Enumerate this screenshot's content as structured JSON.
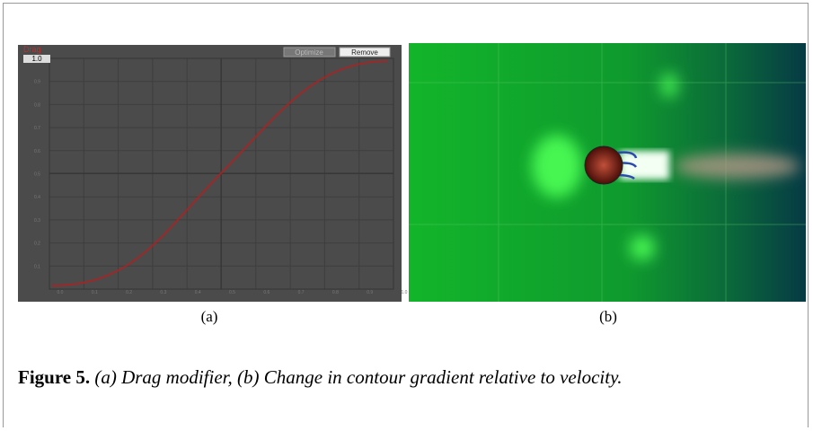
{
  "panel_a": {
    "header": "Drag",
    "value_box": "1.0",
    "buttons": [
      "Optimize",
      "Remove"
    ],
    "y_ticks": [
      "0.9",
      "0.8",
      "0.7",
      "0.6",
      "0.5",
      "0.4",
      "0.3",
      "0.2",
      "0.1"
    ],
    "x_ticks": [
      "0.0",
      "0.1",
      "0.2",
      "0.3",
      "0.4",
      "0.5",
      "0.6",
      "0.7",
      "0.8",
      "0.9",
      "1.0"
    ],
    "label": "(a)"
  },
  "panel_b": {
    "label": "(b)"
  },
  "caption": {
    "number": "Figure 5.",
    "text": "(a) Drag modifier, (b) Change in contour gradient relative to velocity."
  }
}
